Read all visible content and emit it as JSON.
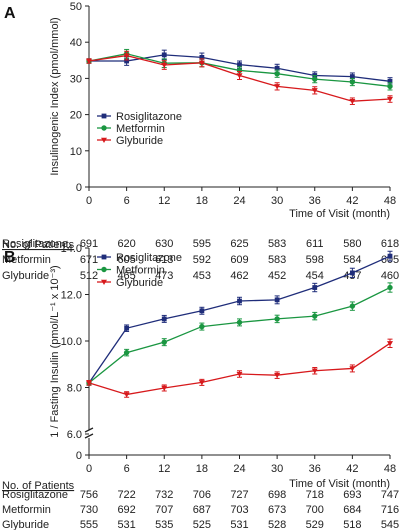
{
  "chart_data": [
    {
      "type": "line",
      "panel_label": "A",
      "xlabel": "Time of Visit (month)",
      "ylabel": "Insulinogenic Index (pmol/mmol)",
      "ylim": [
        0,
        50
      ],
      "yticks": [
        0,
        10,
        20,
        30,
        40,
        50
      ],
      "ytick_labels": [
        "0",
        "10",
        "20",
        "30",
        "40",
        "50"
      ],
      "xticks": [
        0,
        6,
        12,
        18,
        24,
        30,
        36,
        42,
        48
      ],
      "xtick_labels": [
        "0",
        "6",
        "12",
        "18",
        "24",
        "30",
        "36",
        "42",
        "48"
      ],
      "grid": false,
      "legend": "left-lower",
      "series": [
        {
          "name": "Rosiglitazone",
          "color": "#1f2d7a",
          "marker": "square",
          "x": [
            0,
            6,
            12,
            18,
            24,
            30,
            36,
            42,
            48
          ],
          "values": [
            34.8,
            34.8,
            36.5,
            35.8,
            33.8,
            32.8,
            30.8,
            30.5,
            29.2
          ],
          "err": [
            0.6,
            1.2,
            1.3,
            1.2,
            1.0,
            1.1,
            1.0,
            1.0,
            1.0
          ]
        },
        {
          "name": "Metformin",
          "color": "#1a9641",
          "marker": "circle",
          "x": [
            0,
            6,
            12,
            18,
            24,
            30,
            36,
            42,
            48
          ],
          "values": [
            34.8,
            36.8,
            34.2,
            34.3,
            32.2,
            31.3,
            29.8,
            29.0,
            27.8
          ],
          "err": [
            0.6,
            1.2,
            1.2,
            1.1,
            1.0,
            1.0,
            1.0,
            1.0,
            1.0
          ]
        },
        {
          "name": "Glyburide",
          "color": "#d7191c",
          "marker": "triangle-down",
          "x": [
            0,
            6,
            12,
            18,
            24,
            30,
            36,
            42,
            48
          ],
          "values": [
            34.8,
            36.3,
            33.7,
            34.3,
            30.8,
            27.8,
            26.7,
            23.7,
            24.3
          ],
          "err": [
            0.6,
            1.2,
            1.2,
            1.1,
            1.1,
            1.0,
            1.0,
            0.9,
            0.9
          ]
        }
      ],
      "patients": {
        "title": "No. of Patients",
        "rows": [
          {
            "label": "Rosiglitazone",
            "values": [
              "691",
              "620",
              "630",
              "595",
              "625",
              "583",
              "611",
              "580",
              "618"
            ]
          },
          {
            "label": "Metformin",
            "values": [
              "671",
              "605",
              "613",
              "592",
              "609",
              "583",
              "598",
              "584",
              "605"
            ]
          },
          {
            "label": "Glyburide",
            "values": [
              "512",
              "465",
              "473",
              "453",
              "462",
              "452",
              "454",
              "437",
              "460"
            ]
          }
        ]
      }
    },
    {
      "type": "line",
      "panel_label": "B",
      "xlabel": "Time of Visit (month)",
      "ylabel": "1 / Fasting Insulin (pmol/L⁻¹ x 10⁻³)",
      "ylim": [
        0,
        14
      ],
      "axis_break": true,
      "yticks": [
        0,
        6,
        8,
        10,
        12,
        14
      ],
      "ytick_labels": [
        "0",
        "6.0",
        "8.0",
        "10.0",
        "12.0",
        "14.0"
      ],
      "xticks": [
        0,
        6,
        12,
        18,
        24,
        30,
        36,
        42,
        48
      ],
      "xtick_labels": [
        "0",
        "6",
        "12",
        "18",
        "24",
        "30",
        "36",
        "42",
        "48"
      ],
      "grid": false,
      "legend": "top-left",
      "series": [
        {
          "name": "Rosiglitazone",
          "color": "#1f2d7a",
          "marker": "square",
          "x": [
            0,
            6,
            12,
            18,
            24,
            30,
            36,
            42,
            48
          ],
          "values": [
            8.2,
            10.55,
            10.95,
            11.3,
            11.72,
            11.77,
            12.3,
            12.93,
            13.65
          ],
          "err": [
            0.1,
            0.14,
            0.15,
            0.15,
            0.16,
            0.17,
            0.18,
            0.2,
            0.21
          ]
        },
        {
          "name": "Metformin",
          "color": "#1a9641",
          "marker": "circle",
          "x": [
            0,
            6,
            12,
            18,
            24,
            30,
            36,
            42,
            48
          ],
          "values": [
            8.2,
            9.5,
            9.95,
            10.62,
            10.8,
            10.95,
            11.07,
            11.5,
            12.3
          ],
          "err": [
            0.1,
            0.14,
            0.15,
            0.15,
            0.15,
            0.16,
            0.16,
            0.18,
            0.2
          ]
        },
        {
          "name": "Glyburide",
          "color": "#d7191c",
          "marker": "triangle-down",
          "x": [
            0,
            6,
            12,
            18,
            24,
            30,
            36,
            42,
            48
          ],
          "values": [
            8.2,
            7.7,
            7.98,
            8.22,
            8.58,
            8.53,
            8.72,
            8.82,
            9.9
          ],
          "err": [
            0.1,
            0.12,
            0.13,
            0.13,
            0.14,
            0.14,
            0.14,
            0.15,
            0.18
          ]
        }
      ],
      "patients": {
        "title": "No. of Patients",
        "rows": [
          {
            "label": "Rosiglitazone",
            "values": [
              "756",
              "722",
              "732",
              "706",
              "727",
              "698",
              "718",
              "693",
              "747"
            ]
          },
          {
            "label": "Metformin",
            "values": [
              "730",
              "692",
              "707",
              "687",
              "703",
              "673",
              "700",
              "684",
              "716"
            ]
          },
          {
            "label": "Glyburide",
            "values": [
              "555",
              "531",
              "535",
              "525",
              "531",
              "528",
              "529",
              "518",
              "545"
            ]
          }
        ]
      }
    }
  ]
}
